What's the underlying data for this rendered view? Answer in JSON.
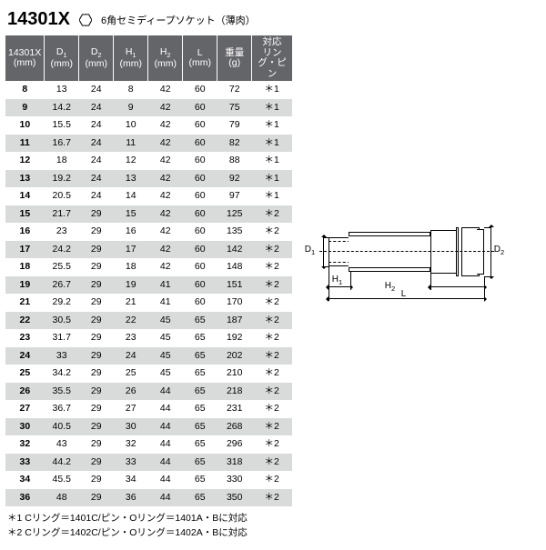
{
  "header": {
    "part_number": "14301X",
    "description": "6角セミディープソケット（薄肉）"
  },
  "columns": [
    {
      "label_line1": "14301X",
      "label_line2": "(mm)"
    },
    {
      "label_line1": "D₁",
      "label_line2": "(mm)"
    },
    {
      "label_line1": "D₂",
      "label_line2": "(mm)"
    },
    {
      "label_line1": "H₁",
      "label_line2": "(mm)"
    },
    {
      "label_line1": "H₂",
      "label_line2": "(mm)"
    },
    {
      "label_line1": "L",
      "label_line2": "(mm)"
    },
    {
      "label_line1": "重量",
      "label_line2": "(g)"
    },
    {
      "label_line1": "対応",
      "label_line2": "リング・ピン"
    }
  ],
  "rows": [
    {
      "size": "8",
      "d1": "13",
      "d2": "24",
      "h1": "8",
      "h2": "42",
      "l": "60",
      "weight": "72",
      "ring": "＊1"
    },
    {
      "size": "9",
      "d1": "14.2",
      "d2": "24",
      "h1": "9",
      "h2": "42",
      "l": "60",
      "weight": "75",
      "ring": "＊1"
    },
    {
      "size": "10",
      "d1": "15.5",
      "d2": "24",
      "h1": "10",
      "h2": "42",
      "l": "60",
      "weight": "79",
      "ring": "＊1"
    },
    {
      "size": "11",
      "d1": "16.7",
      "d2": "24",
      "h1": "11",
      "h2": "42",
      "l": "60",
      "weight": "82",
      "ring": "＊1"
    },
    {
      "size": "12",
      "d1": "18",
      "d2": "24",
      "h1": "12",
      "h2": "42",
      "l": "60",
      "weight": "88",
      "ring": "＊1"
    },
    {
      "size": "13",
      "d1": "19.2",
      "d2": "24",
      "h1": "13",
      "h2": "42",
      "l": "60",
      "weight": "92",
      "ring": "＊1"
    },
    {
      "size": "14",
      "d1": "20.5",
      "d2": "24",
      "h1": "14",
      "h2": "42",
      "l": "60",
      "weight": "97",
      "ring": "＊1"
    },
    {
      "size": "15",
      "d1": "21.7",
      "d2": "29",
      "h1": "15",
      "h2": "42",
      "l": "60",
      "weight": "125",
      "ring": "＊2"
    },
    {
      "size": "16",
      "d1": "23",
      "d2": "29",
      "h1": "16",
      "h2": "42",
      "l": "60",
      "weight": "135",
      "ring": "＊2"
    },
    {
      "size": "17",
      "d1": "24.2",
      "d2": "29",
      "h1": "17",
      "h2": "42",
      "l": "60",
      "weight": "142",
      "ring": "＊2"
    },
    {
      "size": "18",
      "d1": "25.5",
      "d2": "29",
      "h1": "18",
      "h2": "42",
      "l": "60",
      "weight": "148",
      "ring": "＊2"
    },
    {
      "size": "19",
      "d1": "26.7",
      "d2": "29",
      "h1": "19",
      "h2": "41",
      "l": "60",
      "weight": "151",
      "ring": "＊2"
    },
    {
      "size": "21",
      "d1": "29.2",
      "d2": "29",
      "h1": "21",
      "h2": "41",
      "l": "60",
      "weight": "170",
      "ring": "＊2"
    },
    {
      "size": "22",
      "d1": "30.5",
      "d2": "29",
      "h1": "22",
      "h2": "45",
      "l": "65",
      "weight": "187",
      "ring": "＊2"
    },
    {
      "size": "23",
      "d1": "31.7",
      "d2": "29",
      "h1": "23",
      "h2": "45",
      "l": "65",
      "weight": "192",
      "ring": "＊2"
    },
    {
      "size": "24",
      "d1": "33",
      "d2": "29",
      "h1": "24",
      "h2": "45",
      "l": "65",
      "weight": "202",
      "ring": "＊2"
    },
    {
      "size": "25",
      "d1": "34.2",
      "d2": "29",
      "h1": "25",
      "h2": "45",
      "l": "65",
      "weight": "210",
      "ring": "＊2"
    },
    {
      "size": "26",
      "d1": "35.5",
      "d2": "29",
      "h1": "26",
      "h2": "44",
      "l": "65",
      "weight": "218",
      "ring": "＊2"
    },
    {
      "size": "27",
      "d1": "36.7",
      "d2": "29",
      "h1": "27",
      "h2": "44",
      "l": "65",
      "weight": "231",
      "ring": "＊2"
    },
    {
      "size": "30",
      "d1": "40.5",
      "d2": "29",
      "h1": "30",
      "h2": "44",
      "l": "65",
      "weight": "268",
      "ring": "＊2"
    },
    {
      "size": "32",
      "d1": "43",
      "d2": "29",
      "h1": "32",
      "h2": "44",
      "l": "65",
      "weight": "296",
      "ring": "＊2"
    },
    {
      "size": "33",
      "d1": "44.2",
      "d2": "29",
      "h1": "33",
      "h2": "44",
      "l": "65",
      "weight": "318",
      "ring": "＊2"
    },
    {
      "size": "34",
      "d1": "45.5",
      "d2": "29",
      "h1": "34",
      "h2": "44",
      "l": "65",
      "weight": "330",
      "ring": "＊2"
    },
    {
      "size": "36",
      "d1": "48",
      "d2": "29",
      "h1": "36",
      "h2": "44",
      "l": "65",
      "weight": "350",
      "ring": "＊2"
    }
  ],
  "footnotes": [
    "＊1 Cリング＝1401C/ピン・Oリング＝1401A・Bに対応",
    "＊2 Cリング＝1402C/ピン・Oリング＝1402A・Bに対応"
  ],
  "diagram": {
    "labels": {
      "d1": "D₁",
      "d2": "D₂",
      "h1": "H₁",
      "h2": "H₂",
      "l": "L"
    }
  },
  "style": {
    "header_bg": "#646569",
    "header_fg": "#ffffff",
    "row_alt_bg": "#d9dbda",
    "row_bg": "#ffffff"
  }
}
